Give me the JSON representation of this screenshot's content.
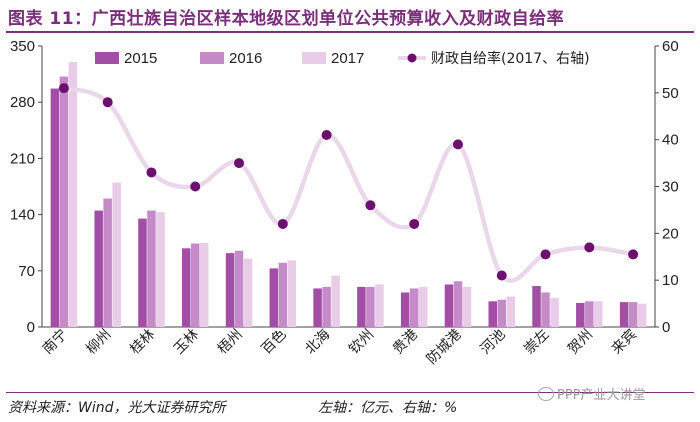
{
  "header": {
    "title": "图表 11：广西壮族自治区样本地级区划单位公共预算收入及财政自给率"
  },
  "footer": {
    "source": "资料来源：Wind，光大证券研究所",
    "axis_note": "左轴：亿元、右轴：%",
    "watermark": "PPP产业大讲堂"
  },
  "colors": {
    "bar_2015": "#a24ea4",
    "bar_2016": "#c58bc8",
    "bar_2017": "#e8cce8",
    "line": "#ead7ea",
    "marker": "#6c0f6e",
    "accent": "#7a2f7a"
  },
  "chart_data": {
    "type": "bar",
    "title": "广西壮族自治区样本地级区划单位公共预算收入及财政自给率",
    "categories": [
      "南宁",
      "柳州",
      "桂林",
      "玉林",
      "梧州",
      "百色",
      "北海",
      "钦州",
      "贵港",
      "防城港",
      "河池",
      "崇左",
      "贺州",
      "来宾"
    ],
    "series": [
      {
        "name": "2015",
        "axis": "left",
        "values": [
          297,
          145,
          135,
          98,
          92,
          73,
          48,
          50,
          43,
          53,
          32,
          51,
          30,
          31
        ]
      },
      {
        "name": "2016",
        "axis": "left",
        "values": [
          312,
          160,
          145,
          104,
          95,
          80,
          50,
          50,
          48,
          57,
          34,
          43,
          32,
          31
        ]
      },
      {
        "name": "2017",
        "axis": "left",
        "values": [
          330,
          180,
          143,
          105,
          85,
          83,
          64,
          53,
          50,
          50,
          38,
          36,
          32,
          29
        ]
      },
      {
        "name": "财政自给率(2017、右轴)",
        "type": "line",
        "axis": "right",
        "values": [
          51,
          48,
          33,
          30,
          35,
          22,
          41,
          26,
          22,
          39,
          11,
          15.5,
          17,
          15.5
        ]
      }
    ],
    "ylim_left": [
      0,
      350
    ],
    "ylim_right": [
      0,
      60
    ],
    "yticks_left": [
      "0",
      "70",
      "140",
      "210",
      "280",
      "350"
    ],
    "yticks_right": [
      "0",
      "10",
      "20",
      "30",
      "40",
      "50",
      "60"
    ],
    "xlabel": "",
    "ylabel_left": "亿元",
    "ylabel_right": "%",
    "legend": [
      {
        "label": "2015",
        "series": 0
      },
      {
        "label": "2016",
        "series": 1
      },
      {
        "label": "2017",
        "series": 2
      },
      {
        "label": "财政自给率(2017、右轴)",
        "series": 3
      }
    ],
    "legend_position": "top"
  }
}
